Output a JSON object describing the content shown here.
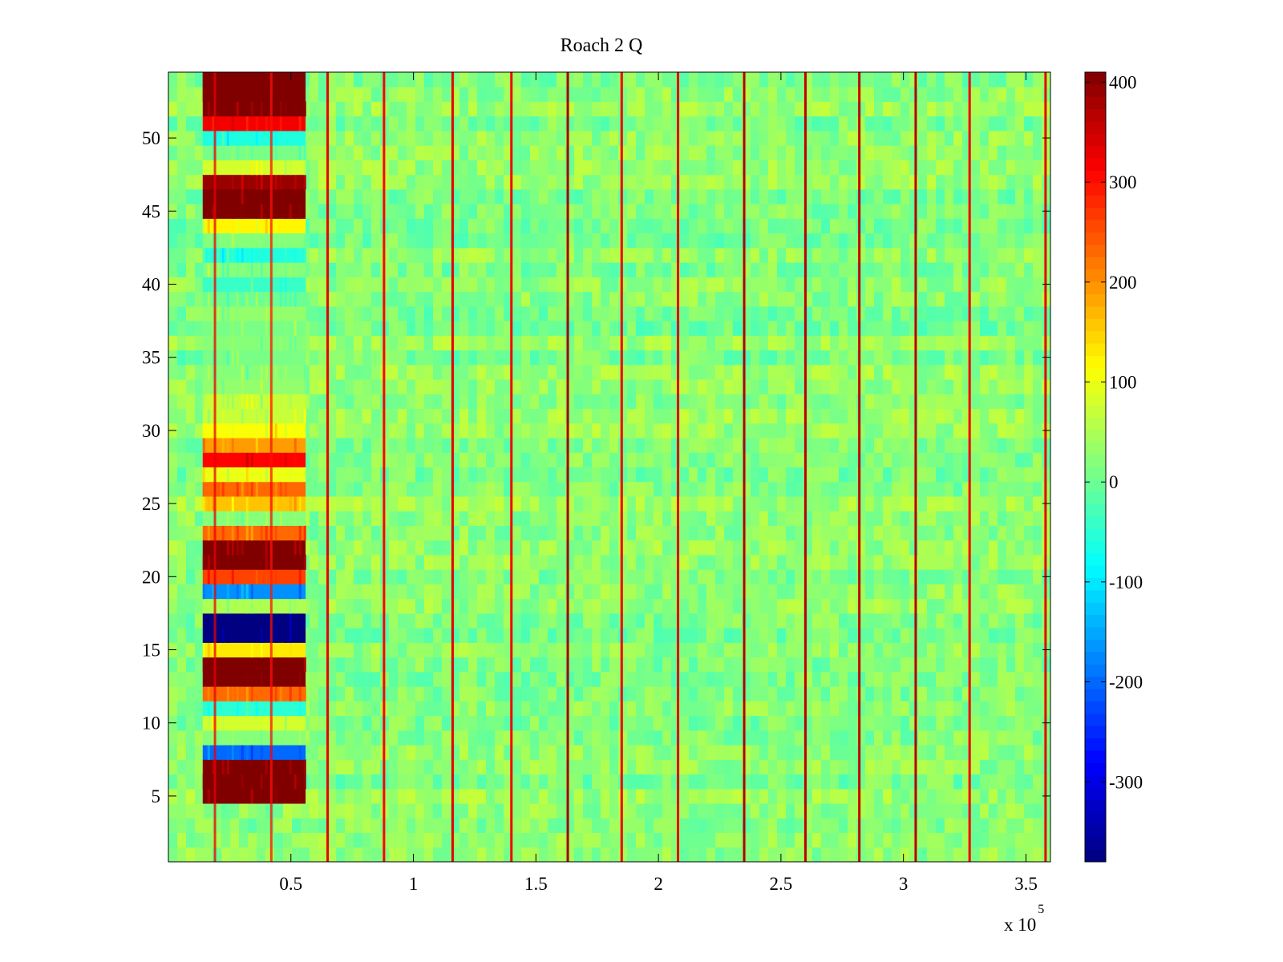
{
  "chart_data": {
    "type": "heatmap",
    "title": "Roach 2 Q",
    "xlabel": "",
    "ylabel": "",
    "x_multiplier_label": "x 10",
    "x_multiplier_exponent": "5",
    "xlim": [
      0.0,
      3.6
    ],
    "ylim": [
      0.5,
      54.5
    ],
    "x_ticks": [
      0.5,
      1,
      1.5,
      2,
      2.5,
      3,
      3.5
    ],
    "x_tick_labels": [
      "0.5",
      "1",
      "1.5",
      "2",
      "2.5",
      "3",
      "3.5"
    ],
    "y_ticks": [
      5,
      10,
      15,
      20,
      25,
      30,
      35,
      40,
      45,
      50
    ],
    "y_tick_labels": [
      "5",
      "10",
      "15",
      "20",
      "25",
      "30",
      "35",
      "40",
      "45",
      "50"
    ],
    "colormap": "jet",
    "clim": [
      -380,
      410
    ],
    "colorbar_ticks": [
      400,
      300,
      200,
      100,
      0,
      -100,
      -200,
      -300
    ],
    "colorbar_tick_labels": [
      "400",
      "300",
      "200",
      "100",
      "0",
      "-100",
      "-200",
      "-300"
    ],
    "rows": 54,
    "background_level": 20,
    "strong_block": {
      "x_range": [
        0.14,
        0.56
      ],
      "row_values": [
        {
          "row": 5,
          "value": 410
        },
        {
          "row": 6,
          "value": 410
        },
        {
          "row": 7,
          "value": 410
        },
        {
          "row": 8,
          "value": -200
        },
        {
          "row": 9,
          "value": 20
        },
        {
          "row": 10,
          "value": 80
        },
        {
          "row": 11,
          "value": -50
        },
        {
          "row": 12,
          "value": 230
        },
        {
          "row": 13,
          "value": 410
        },
        {
          "row": 14,
          "value": 410
        },
        {
          "row": 15,
          "value": 130
        },
        {
          "row": 16,
          "value": -380
        },
        {
          "row": 17,
          "value": -380
        },
        {
          "row": 18,
          "value": 50
        },
        {
          "row": 19,
          "value": -170
        },
        {
          "row": 20,
          "value": 260
        },
        {
          "row": 21,
          "value": 410
        },
        {
          "row": 22,
          "value": 410
        },
        {
          "row": 23,
          "value": 230
        },
        {
          "row": 24,
          "value": 20
        },
        {
          "row": 25,
          "value": 160
        },
        {
          "row": 26,
          "value": 230
        },
        {
          "row": 27,
          "value": 100
        },
        {
          "row": 28,
          "value": 310
        },
        {
          "row": 29,
          "value": 190
        },
        {
          "row": 30,
          "value": 110
        },
        {
          "row": 31,
          "value": 70
        },
        {
          "row": 32,
          "value": 70
        },
        {
          "row": 33,
          "value": 30
        },
        {
          "row": 34,
          "value": 20
        },
        {
          "row": 35,
          "value": 10
        },
        {
          "row": 36,
          "value": 20
        },
        {
          "row": 37,
          "value": 10
        },
        {
          "row": 38,
          "value": 30
        },
        {
          "row": 39,
          "value": 0
        },
        {
          "row": 40,
          "value": -40
        },
        {
          "row": 41,
          "value": 20
        },
        {
          "row": 42,
          "value": -60
        },
        {
          "row": 43,
          "value": 20
        },
        {
          "row": 44,
          "value": 120
        },
        {
          "row": 45,
          "value": 410
        },
        {
          "row": 46,
          "value": 410
        },
        {
          "row": 47,
          "value": 390
        },
        {
          "row": 48,
          "value": 80
        },
        {
          "row": 49,
          "value": 10
        },
        {
          "row": 50,
          "value": -60
        },
        {
          "row": 51,
          "value": 320
        },
        {
          "row": 52,
          "value": 410
        },
        {
          "row": 53,
          "value": 410
        },
        {
          "row": 54,
          "value": 410
        }
      ]
    },
    "vertical_stripes": [
      {
        "x": 0.65,
        "value": 330
      },
      {
        "x": 0.88,
        "value": 310
      },
      {
        "x": 1.16,
        "value": 330
      },
      {
        "x": 1.4,
        "value": 320
      },
      {
        "x": 1.63,
        "value": 380
      },
      {
        "x": 1.85,
        "value": 320
      },
      {
        "x": 2.08,
        "value": 330
      },
      {
        "x": 2.35,
        "value": 370
      },
      {
        "x": 2.6,
        "value": 360
      },
      {
        "x": 2.82,
        "value": 360
      },
      {
        "x": 3.05,
        "value": 370
      },
      {
        "x": 3.27,
        "value": 320
      },
      {
        "x": 3.58,
        "value": 330
      }
    ],
    "thin_block_lines": [
      {
        "x": 0.19,
        "value": 330
      },
      {
        "x": 0.42,
        "value": 300
      }
    ]
  }
}
